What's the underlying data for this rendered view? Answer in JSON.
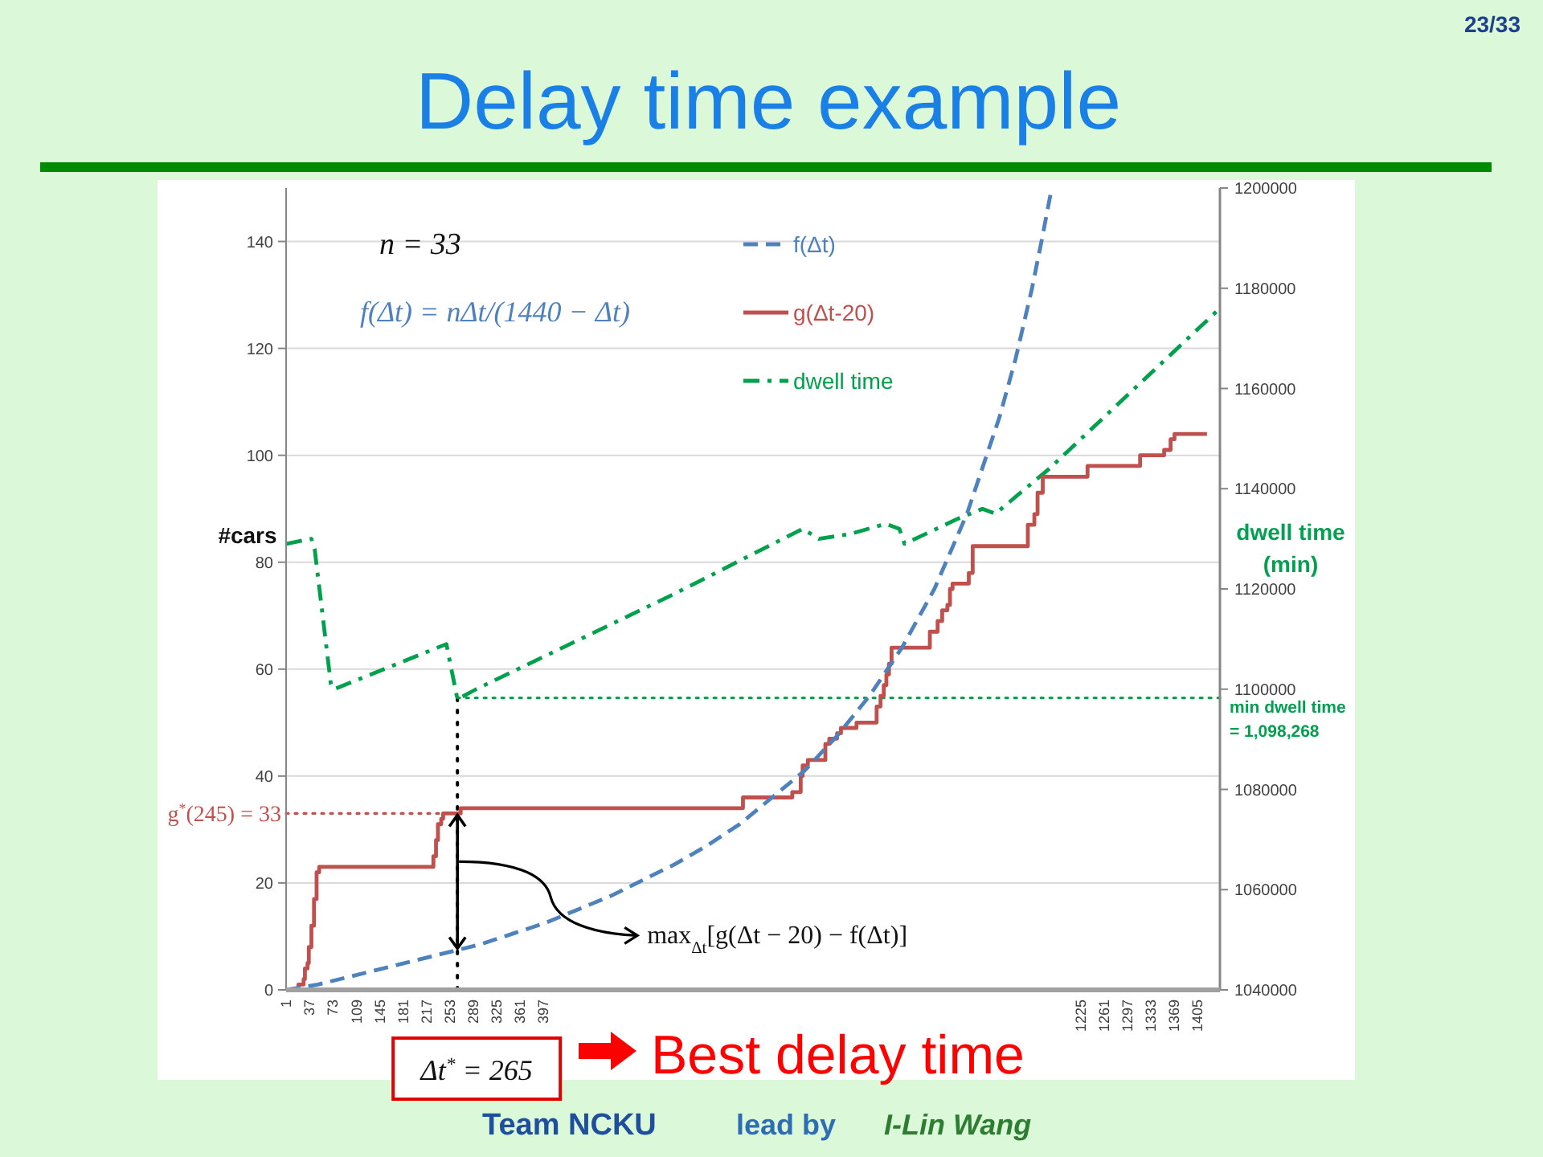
{
  "chart_data": {
    "type": "line",
    "title": "Delay time example",
    "ylabel": "#cars",
    "y2label": "dwell time (min)",
    "xlim": [
      1,
      1440
    ],
    "xticks": [
      1,
      37,
      73,
      109,
      145,
      181,
      217,
      253,
      289,
      325,
      361,
      397,
      1225,
      1261,
      1297,
      1333,
      1369,
      1405
    ],
    "ylim": [
      0,
      150
    ],
    "yticks": [
      0,
      20,
      40,
      60,
      80,
      100,
      120,
      140
    ],
    "y2lim": [
      1040000,
      1200000
    ],
    "y2ticks": [
      1040000,
      1060000,
      1080000,
      1100000,
      1120000,
      1140000,
      1160000,
      1180000,
      1200000
    ],
    "grid": "y",
    "legend": "top",
    "series": [
      {
        "name": "f(Δt)",
        "color": "#4f81bd",
        "line_style": "dashed",
        "x": [
          1,
          50,
          100,
          150,
          200,
          250,
          300,
          350,
          400,
          450,
          500,
          550,
          600,
          650,
          700,
          750,
          800,
          850,
          900,
          950,
          1000,
          1050,
          1100,
          1125,
          1150,
          1165,
          1180
        ],
        "values": [
          0,
          1,
          2.5,
          4,
          5.5,
          7,
          8.5,
          10.5,
          12.5,
          15,
          17.5,
          20.5,
          23.5,
          27,
          31,
          36,
          41,
          47.5,
          55,
          64,
          75,
          89,
          107,
          118,
          131,
          140,
          149.5
        ]
      },
      {
        "name": "g(Δt-20)",
        "type": "step",
        "color": "#c0504d",
        "line_style": "solid",
        "x": [
          1,
          20,
          28,
          30,
          34,
          36,
          40,
          44,
          48,
          52,
          228,
          232,
          235,
          240,
          243,
          270,
          705,
          781,
          794,
          797,
          805,
          832,
          838,
          850,
          856,
          880,
          911,
          917,
          922,
          926,
          930,
          934,
          993,
          1005,
          1012,
          1020,
          1024,
          1028,
          1053,
          1059,
          1144,
          1154,
          1159,
          1167,
          1236,
          1317,
          1354,
          1364,
          1370,
          1420
        ],
        "values": [
          0,
          1,
          2,
          4,
          5,
          8,
          12,
          17,
          22,
          23,
          25,
          28,
          31,
          32,
          33,
          34,
          36,
          37,
          40,
          42,
          43,
          46,
          47,
          48,
          49,
          50,
          53,
          55,
          57,
          59,
          61,
          64,
          67,
          69,
          71,
          72,
          75,
          76,
          78,
          83,
          87,
          89,
          93,
          96,
          98,
          100,
          101,
          103,
          104,
          104
        ]
      },
      {
        "name": "dwell time",
        "axis": "y2",
        "color": "#00a04c",
        "line_style": "dashdot",
        "x": [
          1,
          40,
          45,
          70,
          75,
          248,
          265,
          294,
          599,
          797,
          822,
          871,
          925,
          946,
          954,
          1036,
          1074,
          1094,
          1177,
          1440
        ],
        "values": [
          1129000,
          1130000,
          1128000,
          1101000,
          1100000,
          1109000,
          1098000,
          1100000,
          1119000,
          1132000,
          1130000,
          1131000,
          1133000,
          1132000,
          1129000,
          1134000,
          1136000,
          1135000,
          1144000,
          1176000
        ]
      }
    ],
    "ref_lines": [
      {
        "axis": "x",
        "value": 265,
        "label": "Δt$^{*}$ = 265",
        "color": "#000000",
        "line_style": "dotted"
      },
      {
        "axis": "y",
        "value": 33,
        "label": "g$^{*}$(245) = 33",
        "color": "#c0504d",
        "line_style": "dotted"
      },
      {
        "axis": "y2",
        "value": 1098268,
        "label": "min dwell time = 1,098,268",
        "color": "#00a050",
        "line_style": "dotted"
      }
    ],
    "annotations": [
      "23/33",
      "n = 33",
      "f(Δt) = nΔt/(1440 − Δt)",
      {
        "text": "max$_{Δt}$[g(Δt − 20) − f(Δt)]",
        "x": 265,
        "y": 24
      },
      "Best delay time",
      "Team NCKU",
      "lead by",
      "I-Lin Wang"
    ]
  }
}
